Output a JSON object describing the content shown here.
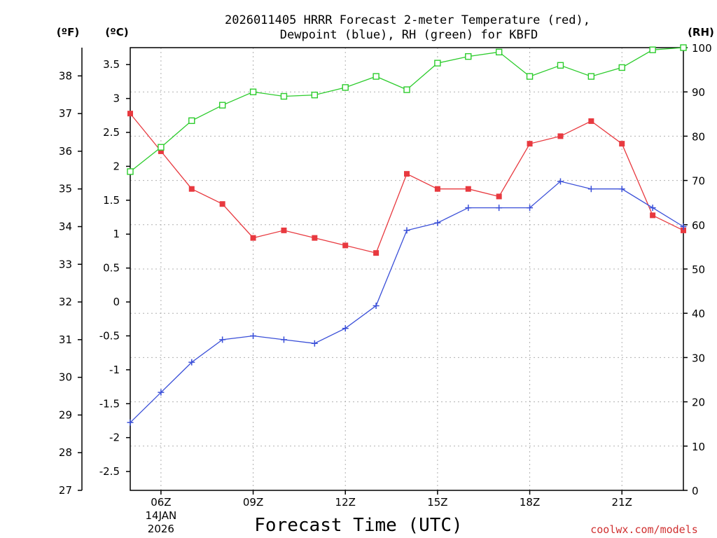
{
  "chart_data": {
    "type": "line",
    "title_line1": "2026011405 HRRR Forecast 2-meter Temperature (red),",
    "title_line2": "Dewpoint (blue), RH (green) for KBFD",
    "xlabel": "Forecast Time (UTC)",
    "credit": "coolwx.com/models",
    "x_hours": [
      5,
      6,
      7,
      8,
      9,
      10,
      11,
      12,
      13,
      14,
      15,
      16,
      17,
      18,
      19,
      20,
      21,
      22,
      23
    ],
    "x_ticks": [
      {
        "hour": 6,
        "label": "06Z",
        "date": "14JAN",
        "year": "2026"
      },
      {
        "hour": 9,
        "label": "09Z"
      },
      {
        "hour": 12,
        "label": "12Z"
      },
      {
        "hour": 15,
        "label": "15Z"
      },
      {
        "hour": 18,
        "label": "18Z"
      },
      {
        "hour": 21,
        "label": "21Z"
      }
    ],
    "xlim": [
      5,
      23
    ],
    "left_axis_f": {
      "unit_label": "(ºF)",
      "ticks": [
        "27",
        "28",
        "29",
        "30",
        "31",
        "32",
        "33",
        "34",
        "35",
        "36",
        "37",
        "38"
      ],
      "ylim": [
        27,
        38.75
      ]
    },
    "left_axis_c": {
      "unit_label": "(ºC)",
      "ticks": [
        "-2.5",
        "-2",
        "-1.5",
        "-1",
        "-0.5",
        "0",
        "0.5",
        "1",
        "1.5",
        "2",
        "2.5",
        "3",
        "3.5"
      ],
      "ylim": [
        -2.778,
        3.75
      ]
    },
    "right_axis_rh": {
      "unit_label": "(RH)",
      "ticks": [
        "0",
        "10",
        "20",
        "30",
        "40",
        "50",
        "60",
        "70",
        "80",
        "90",
        "100"
      ],
      "ylim": [
        0,
        100
      ]
    },
    "series": [
      {
        "name": "Temperature",
        "unit": "F",
        "color": "#e8393f",
        "marker": "filled-square",
        "values": [
          37.0,
          36.0,
          35.0,
          34.6,
          33.7,
          33.9,
          33.7,
          33.5,
          33.3,
          35.4,
          35.0,
          35.0,
          34.8,
          36.2,
          36.4,
          36.8,
          36.2,
          34.3,
          33.9
        ]
      },
      {
        "name": "Dewpoint",
        "unit": "F",
        "color": "#3a4fd8",
        "marker": "plus",
        "values": [
          28.8,
          29.6,
          30.4,
          31.0,
          31.1,
          31.0,
          30.9,
          31.3,
          31.9,
          33.9,
          34.1,
          34.5,
          34.5,
          34.5,
          35.2,
          35.0,
          35.0,
          34.5,
          34.0
        ]
      },
      {
        "name": "RH",
        "unit": "%",
        "color": "#2ccc2c",
        "marker": "open-square",
        "values": [
          72,
          77.5,
          83.5,
          87,
          90,
          89,
          89.3,
          91,
          93.5,
          90.5,
          96.5,
          98,
          99,
          93.5,
          96,
          93.5,
          95.5,
          99.5,
          100
        ]
      }
    ],
    "grid": true
  }
}
